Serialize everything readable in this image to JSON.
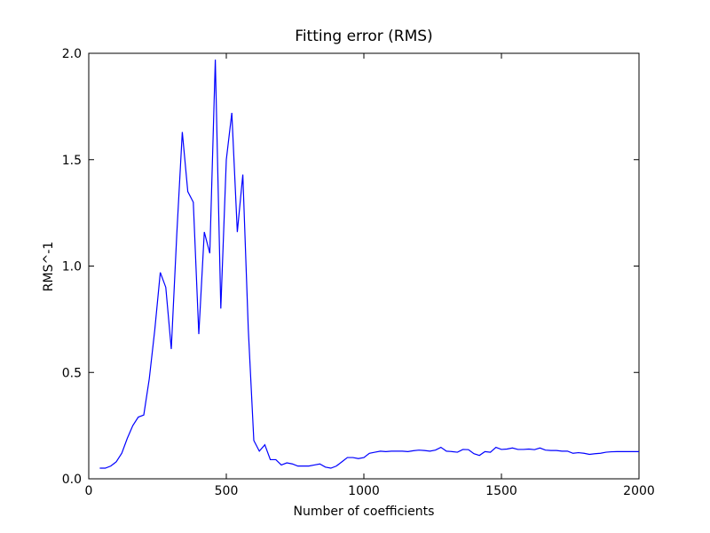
{
  "chart_data": {
    "type": "line",
    "title": "Fitting error (RMS)",
    "xlabel": "Number of coefficients",
    "ylabel": "RMS^-1",
    "x": [
      40,
      60,
      80,
      100,
      120,
      140,
      160,
      180,
      200,
      220,
      240,
      260,
      280,
      300,
      320,
      340,
      360,
      380,
      400,
      420,
      440,
      460,
      480,
      500,
      520,
      540,
      560,
      580,
      600,
      620,
      640,
      660,
      680,
      700,
      720,
      740,
      760,
      780,
      800,
      820,
      840,
      860,
      880,
      900,
      920,
      940,
      960,
      980,
      1000,
      1020,
      1040,
      1060,
      1080,
      1100,
      1120,
      1140,
      1160,
      1180,
      1200,
      1220,
      1240,
      1260,
      1280,
      1300,
      1320,
      1340,
      1360,
      1380,
      1400,
      1420,
      1440,
      1460,
      1480,
      1500,
      1520,
      1540,
      1560,
      1580,
      1600,
      1620,
      1640,
      1660,
      1680,
      1700,
      1720,
      1740,
      1760,
      1780,
      1800,
      1820,
      1840,
      1860,
      1880,
      1900,
      1920,
      1940,
      1960,
      1980,
      2000
    ],
    "values": [
      0.05,
      0.05,
      0.06,
      0.08,
      0.12,
      0.19,
      0.25,
      0.29,
      0.3,
      0.47,
      0.7,
      0.97,
      0.9,
      0.61,
      1.15,
      1.63,
      1.35,
      1.3,
      0.68,
      1.16,
      1.06,
      1.97,
      0.8,
      1.5,
      1.72,
      1.16,
      1.43,
      0.7,
      0.18,
      0.13,
      0.16,
      0.09,
      0.09,
      0.065,
      0.075,
      0.07,
      0.06,
      0.06,
      0.06,
      0.065,
      0.07,
      0.055,
      0.05,
      0.06,
      0.08,
      0.1,
      0.1,
      0.095,
      0.1,
      0.12,
      0.125,
      0.13,
      0.128,
      0.13,
      0.13,
      0.13,
      0.128,
      0.132,
      0.135,
      0.133,
      0.13,
      0.135,
      0.148,
      0.13,
      0.128,
      0.125,
      0.138,
      0.137,
      0.118,
      0.11,
      0.128,
      0.125,
      0.148,
      0.138,
      0.14,
      0.145,
      0.138,
      0.138,
      0.14,
      0.137,
      0.145,
      0.135,
      0.133,
      0.133,
      0.13,
      0.13,
      0.12,
      0.123,
      0.12,
      0.115,
      0.118,
      0.12,
      0.125,
      0.127,
      0.128,
      0.128,
      0.128,
      0.128,
      0.128
    ],
    "color": "#0000ff",
    "xlim": [
      0,
      2000
    ],
    "xticks": [
      0,
      500,
      1000,
      1500,
      2000
    ],
    "ylim": [
      0,
      2.0
    ],
    "yticks": [
      {
        "value": 0,
        "label": "0.0"
      },
      0.5,
      {
        "value": 1,
        "label": "1.0"
      },
      1.5,
      {
        "value": 2,
        "label": "2.0"
      }
    ]
  }
}
